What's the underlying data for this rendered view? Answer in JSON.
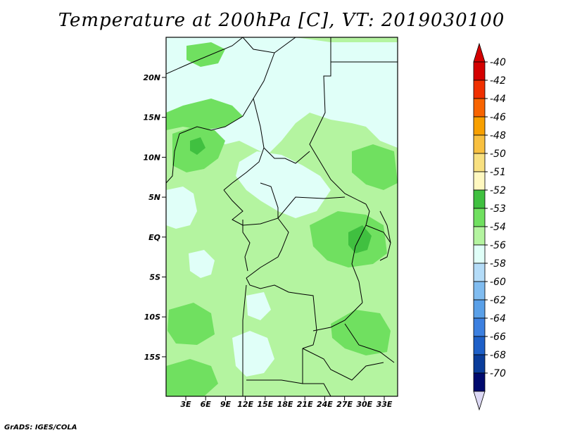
{
  "title": "Temperature at 200hPa [C], VT: 2019030100",
  "credit": "GrADS: IGES/COLA",
  "map": {
    "lat_labels": [
      "20N",
      "15N",
      "10N",
      "5N",
      "EQ",
      "5S",
      "10S",
      "15S"
    ],
    "lon_labels": [
      "3E",
      "6E",
      "9E",
      "12E",
      "15E",
      "18E",
      "21E",
      "24E",
      "27E",
      "30E",
      "33E"
    ]
  },
  "colorbar": {
    "labels": [
      "-40",
      "-42",
      "-44",
      "-46",
      "-48",
      "-50",
      "-51",
      "-52",
      "-53",
      "-54",
      "-56",
      "-58",
      "-60",
      "-62",
      "-64",
      "-66",
      "-68",
      "-70"
    ],
    "colors": [
      "#d40000",
      "#f03000",
      "#f86400",
      "#f8a000",
      "#f8c040",
      "#f8e080",
      "#fff8c0",
      "#40c040",
      "#70e060",
      "#b4f4a0",
      "#e0fff8",
      "#b4dcf8",
      "#80bcf0",
      "#5aa0e8",
      "#3c80e0",
      "#1e60c8",
      "#0a3c9a",
      "#000a6e"
    ],
    "top_arrow_color": "#d40000",
    "bottom_arrow_color": "#dcd8f4"
  },
  "fill_colors": {
    "ocean_base": "#b4f4a0",
    "cold_patch": "#e0fff8",
    "warm_patch": "#70e060",
    "warmest_patch": "#40c040",
    "border": "#000000"
  }
}
